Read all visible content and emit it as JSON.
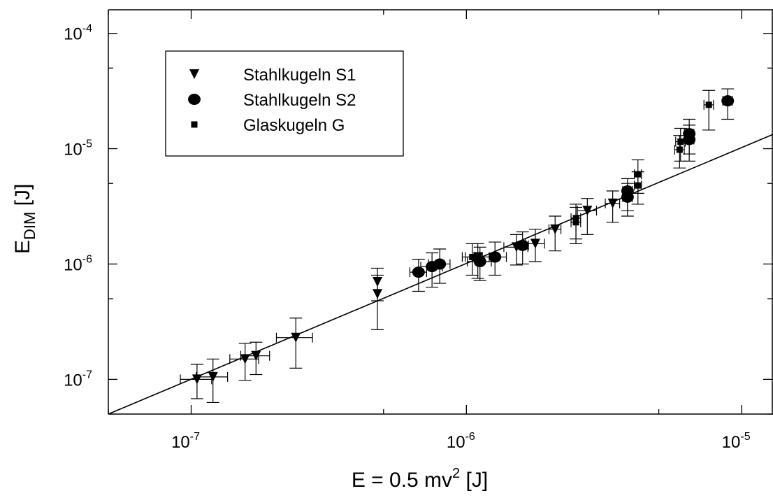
{
  "chart_data": {
    "type": "scatter",
    "title": "",
    "xlabel": {
      "base": "E = 0.5 mv",
      "sup": "2",
      "unit": " [J]"
    },
    "ylabel": {
      "base": "E",
      "sub": "DIM",
      "unit": " [J]"
    },
    "x_scale": "log",
    "y_scale": "log",
    "xlim": [
      5e-08,
      1.3e-05
    ],
    "ylim": [
      5e-08,
      0.00016
    ],
    "grid": false,
    "legend_position": "top-left",
    "x_ticks": [
      {
        "value": 1e-07,
        "mantissa": "10",
        "exp": "-7"
      },
      {
        "value": 1e-06,
        "mantissa": "10",
        "exp": "-6"
      },
      {
        "value": 1e-05,
        "mantissa": "10",
        "exp": "-5"
      }
    ],
    "y_ticks": [
      {
        "value": 1e-07,
        "mantissa": "10",
        "exp": "-7"
      },
      {
        "value": 1e-06,
        "mantissa": "10",
        "exp": "-6"
      },
      {
        "value": 1e-05,
        "mantissa": "10",
        "exp": "-5"
      },
      {
        "value": 0.0001,
        "mantissa": "10",
        "exp": "-4"
      }
    ],
    "fit_line": {
      "points": [
        [
          5e-08,
          5e-08
        ],
        [
          1.3e-05,
          1.33e-05
        ]
      ]
    },
    "series": [
      {
        "name": "Stahlkugeln S1",
        "marker": "triangle-down",
        "points": [
          {
            "x": 1.05e-07,
            "y": 1e-07,
            "xerr": 0.13,
            "ylo": 6.8e-08,
            "yhi": 1.35e-07
          },
          {
            "x": 1.2e-07,
            "y": 1.05e-07,
            "xerr": 0.13,
            "ylo": 6.3e-08,
            "yhi": 1.5e-07
          },
          {
            "x": 1.57e-07,
            "y": 1.5e-07,
            "xerr": 0.12,
            "ylo": 9.8e-08,
            "yhi": 2.05e-07
          },
          {
            "x": 1.72e-07,
            "y": 1.6e-07,
            "xerr": 0.12,
            "ylo": 1.1e-07,
            "yhi": 2.1e-07
          },
          {
            "x": 2.4e-07,
            "y": 2.3e-07,
            "xerr": 0.15,
            "ylo": 1.25e-07,
            "yhi": 3.4e-07
          },
          {
            "x": 4.75e-07,
            "y": 7e-07,
            "xerr": 0.0,
            "ylo": 4.8e-07,
            "yhi": 9.2e-07
          },
          {
            "x": 4.75e-07,
            "y": 5.5e-07,
            "xerr": 0.0,
            "ylo": 2.7e-07,
            "yhi": 8e-07
          },
          {
            "x": 1.1e-06,
            "y": 1.15e-06,
            "xerr": 0.1,
            "ylo": 7.5e-07,
            "yhi": 1.5e-06
          },
          {
            "x": 1.52e-06,
            "y": 1.4e-06,
            "xerr": 0.1,
            "ylo": 9.8e-07,
            "yhi": 1.8e-06
          },
          {
            "x": 1.78e-06,
            "y": 1.5e-06,
            "xerr": 0.08,
            "ylo": 1.05e-06,
            "yhi": 2e-06
          },
          {
            "x": 2.1e-06,
            "y": 2e-06,
            "xerr": 0.05,
            "ylo": 1.3e-06,
            "yhi": 2.6e-06
          },
          {
            "x": 2.75e-06,
            "y": 2.9e-06,
            "xerr": 0.08,
            "ylo": 1.8e-06,
            "yhi": 3.7e-06
          },
          {
            "x": 3.4e-06,
            "y": 3.35e-06,
            "xerr": 0.06,
            "ylo": 2.3e-06,
            "yhi": 4.3e-06
          }
        ]
      },
      {
        "name": "Stahlkugeln S2",
        "marker": "circle",
        "points": [
          {
            "x": 6.7e-07,
            "y": 8.5e-07,
            "xerr": 0.07,
            "ylo": 5.8e-07,
            "yhi": 1.1e-06
          },
          {
            "x": 7.5e-07,
            "y": 9.5e-07,
            "xerr": 0.09,
            "ylo": 6.3e-07,
            "yhi": 1.25e-06
          },
          {
            "x": 8e-07,
            "y": 1e-06,
            "xerr": 0.09,
            "ylo": 6.8e-07,
            "yhi": 1.35e-06
          },
          {
            "x": 1.12e-06,
            "y": 1.05e-06,
            "xerr": 0.1,
            "ylo": 7.2e-07,
            "yhi": 1.4e-06
          },
          {
            "x": 1.27e-06,
            "y": 1.15e-06,
            "xerr": 0.1,
            "ylo": 8e-07,
            "yhi": 1.55e-06
          },
          {
            "x": 1.6e-06,
            "y": 1.45e-06,
            "xerr": 0.05,
            "ylo": 1e-06,
            "yhi": 1.9e-06
          },
          {
            "x": 3.85e-06,
            "y": 3.8e-06,
            "xerr": 0.04,
            "ylo": 2.6e-06,
            "yhi": 5e-06
          },
          {
            "x": 3.85e-06,
            "y": 4.3e-06,
            "xerr": 0.04,
            "ylo": 2.9e-06,
            "yhi": 5.5e-06
          },
          {
            "x": 6.45e-06,
            "y": 1.2e-05,
            "xerr": 0.04,
            "ylo": 7.8e-06,
            "yhi": 1.6e-05
          },
          {
            "x": 6.45e-06,
            "y": 1.35e-05,
            "xerr": 0.04,
            "ylo": 9e-06,
            "yhi": 1.8e-05
          },
          {
            "x": 8.9e-06,
            "y": 2.6e-05,
            "xerr": 0.04,
            "ylo": 1.8e-05,
            "yhi": 3.3e-05
          }
        ]
      },
      {
        "name": "Glaskugeln G",
        "marker": "square",
        "points": [
          {
            "x": 1.05e-06,
            "y": 1.15e-06,
            "xerr": 0.08,
            "ylo": 8e-07,
            "yhi": 1.5e-06
          },
          {
            "x": 2.5e-06,
            "y": 2.3e-06,
            "xerr": 0.04,
            "ylo": 1.5e-06,
            "yhi": 3.1e-06
          },
          {
            "x": 2.5e-06,
            "y": 2.5e-06,
            "xerr": 0.04,
            "ylo": 1.65e-06,
            "yhi": 3.3e-06
          },
          {
            "x": 4.2e-06,
            "y": 4.8e-06,
            "xerr": 0.03,
            "ylo": 3.3e-06,
            "yhi": 6.3e-06
          },
          {
            "x": 4.2e-06,
            "y": 6e-06,
            "xerr": 0.03,
            "ylo": 4.1e-06,
            "yhi": 8e-06
          },
          {
            "x": 5.95e-06,
            "y": 9.8e-06,
            "xerr": 0.04,
            "ylo": 6.8e-06,
            "yhi": 1.3e-05
          },
          {
            "x": 6e-06,
            "y": 1.15e-05,
            "xerr": 0.04,
            "ylo": 7.8e-06,
            "yhi": 1.5e-05
          },
          {
            "x": 7.6e-06,
            "y": 2.4e-05,
            "xerr": 0.04,
            "ylo": 1.45e-05,
            "yhi": 3.2e-05
          }
        ]
      }
    ]
  }
}
